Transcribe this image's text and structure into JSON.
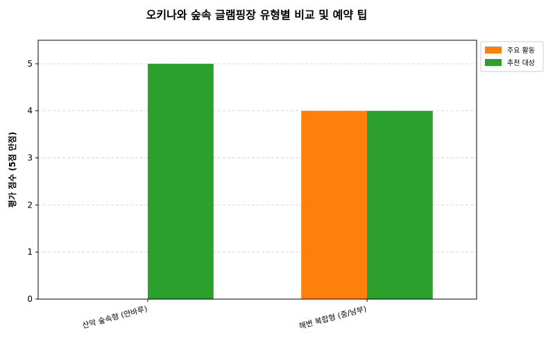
{
  "chart_data": {
    "type": "bar",
    "title": "오키나와 숲속 글램핑장 유형별 비교 및 예약 팁",
    "xlabel": "",
    "ylabel": "평가 점수 (5점 만점)",
    "categories": [
      "산악 숲속형 (얀바루)",
      "해변 복합형 (중/남부)"
    ],
    "series": [
      {
        "name": "주요 활동",
        "values": [
          0,
          4
        ],
        "color": "#ff7f0e"
      },
      {
        "name": "추천 대상",
        "values": [
          5,
          4
        ],
        "color": "#2ca02c"
      }
    ],
    "ylim": [
      0,
      5.5
    ],
    "yticks": [
      0,
      1,
      2,
      3,
      4,
      5
    ],
    "grid": true,
    "legend_position": "outside-top-right"
  }
}
